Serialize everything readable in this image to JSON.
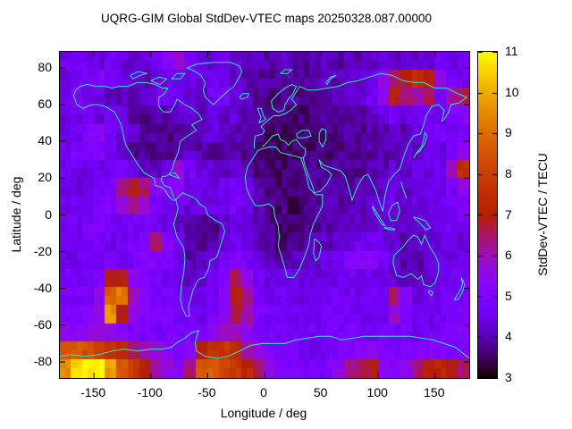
{
  "chart_data": {
    "type": "heatmap",
    "title": "UQRG-GIM Global StdDev-VTEC maps 20250328.087.00000",
    "xlabel": "Longitude / deg",
    "ylabel": "Latitude / deg",
    "colorbar_label": "StdDev-VTEC / TECU",
    "xlim": [
      -180,
      180
    ],
    "ylim": [
      -88.75,
      88.75
    ],
    "xticks": [
      -150,
      -100,
      -50,
      0,
      50,
      100,
      150
    ],
    "yticks": [
      80,
      60,
      40,
      20,
      0,
      -20,
      -40,
      -60,
      -80
    ],
    "colorbar": {
      "min": 3,
      "max": 11,
      "ticks": [
        3,
        4,
        5,
        6,
        7,
        8,
        9,
        10,
        11
      ]
    },
    "palette": "gnuplot pm3d black-violet-red-orange-yellow",
    "units": "TECU",
    "overlay": {
      "coastlines": true,
      "coastline_color": "#35e6c5"
    },
    "grid": {
      "lon_start": -175,
      "lon_step": 10,
      "lat_start": 85,
      "lat_step": -10,
      "values": [
        [
          4.6,
          4.8,
          4.6,
          4.4,
          4.6,
          4.4,
          4.2,
          4.4,
          4.6,
          5.2,
          5.8,
          4.8,
          4.4,
          4.2,
          4.4,
          4.2,
          4.0,
          4.2,
          4.0,
          4.2,
          4.0,
          3.9,
          4.0,
          4.2,
          4.0,
          4.2,
          4.0,
          4.2,
          4.4,
          4.2,
          4.4,
          4.2,
          4.4,
          4.6,
          4.4,
          4.6
        ],
        [
          4.4,
          4.6,
          4.8,
          5.0,
          4.8,
          4.4,
          4.2,
          4.0,
          4.2,
          4.4,
          4.6,
          4.4,
          4.4,
          4.6,
          4.4,
          4.2,
          4.0,
          3.9,
          3.8,
          3.9,
          3.8,
          3.8,
          4.0,
          4.2,
          4.0,
          4.2,
          4.2,
          4.5,
          5.5,
          6.5,
          7.0,
          7.5,
          7.0,
          5.5,
          4.8,
          4.6
        ],
        [
          4.5,
          4.8,
          4.6,
          4.4,
          4.2,
          4.0,
          4.0,
          4.2,
          4.4,
          4.8,
          4.6,
          4.4,
          4.2,
          4.6,
          4.8,
          4.4,
          4.0,
          3.8,
          3.7,
          3.7,
          3.8,
          3.7,
          3.8,
          3.9,
          4.0,
          4.2,
          4.4,
          4.6,
          5.5,
          7.0,
          6.5,
          6.0,
          6.5,
          5.0,
          6.0,
          6.5
        ],
        [
          4.4,
          4.5,
          4.6,
          4.4,
          4.6,
          4.4,
          4.0,
          3.8,
          3.9,
          4.0,
          4.2,
          4.4,
          4.2,
          4.4,
          4.2,
          4.3,
          4.0,
          3.8,
          3.6,
          3.6,
          3.5,
          3.6,
          3.7,
          3.8,
          3.8,
          3.9,
          4.0,
          4.2,
          4.4,
          4.6,
          4.4,
          4.6,
          4.8,
          4.6,
          5.0,
          5.2
        ],
        [
          4.4,
          4.6,
          5.0,
          5.2,
          4.8,
          4.4,
          4.4,
          3.9,
          3.8,
          3.7,
          3.8,
          4.0,
          4.2,
          4.4,
          4.2,
          4.0,
          3.9,
          3.7,
          3.5,
          3.5,
          3.4,
          3.5,
          3.6,
          3.7,
          3.7,
          3.8,
          3.8,
          3.9,
          4.0,
          4.2,
          4.0,
          4.4,
          4.6,
          4.8,
          4.6,
          4.8
        ],
        [
          4.6,
          4.8,
          4.8,
          5.0,
          4.6,
          4.2,
          3.9,
          3.8,
          3.7,
          3.8,
          4.0,
          4.2,
          4.0,
          3.9,
          3.8,
          3.9,
          3.8,
          3.6,
          3.5,
          3.4,
          3.5,
          3.5,
          3.6,
          3.6,
          3.7,
          3.8,
          3.8,
          3.9,
          4.0,
          4.0,
          4.2,
          4.2,
          4.4,
          4.4,
          4.8,
          5.4
        ],
        [
          4.6,
          4.6,
          4.4,
          4.5,
          4.6,
          4.8,
          4.6,
          4.2,
          4.0,
          4.4,
          5.8,
          4.8,
          4.4,
          4.2,
          4.0,
          4.2,
          4.0,
          3.7,
          3.6,
          3.5,
          3.6,
          3.6,
          3.7,
          3.8,
          3.8,
          3.9,
          3.8,
          4.0,
          4.0,
          4.2,
          4.2,
          4.4,
          4.4,
          4.6,
          5.8,
          7.4
        ],
        [
          4.4,
          4.4,
          4.5,
          4.6,
          4.8,
          6.2,
          6.8,
          6.4,
          5.2,
          5.0,
          5.4,
          4.6,
          4.4,
          4.4,
          4.6,
          4.8,
          4.6,
          4.0,
          3.7,
          3.6,
          3.6,
          3.7,
          3.8,
          3.8,
          3.9,
          3.9,
          4.0,
          4.1,
          4.2,
          4.3,
          4.2,
          4.4,
          4.4,
          4.5,
          4.8,
          5.4
        ],
        [
          4.5,
          4.6,
          4.6,
          4.8,
          5.0,
          5.6,
          6.4,
          5.8,
          4.8,
          4.6,
          4.5,
          4.4,
          4.3,
          4.4,
          4.6,
          4.8,
          4.5,
          4.0,
          3.7,
          3.6,
          3.5,
          3.6,
          3.8,
          3.9,
          4.0,
          4.0,
          4.1,
          4.2,
          4.3,
          4.4,
          4.3,
          4.4,
          4.4,
          4.6,
          4.7,
          4.8
        ],
        [
          4.6,
          4.7,
          4.8,
          4.8,
          4.6,
          4.6,
          4.8,
          4.8,
          4.6,
          4.5,
          4.2,
          3.9,
          3.8,
          3.8,
          4.2,
          4.4,
          4.2,
          3.9,
          3.7,
          3.5,
          3.5,
          3.6,
          3.8,
          3.9,
          4.0,
          4.0,
          4.1,
          4.2,
          4.3,
          4.3,
          4.2,
          4.3,
          4.4,
          4.5,
          4.6,
          4.7
        ],
        [
          4.5,
          4.6,
          4.6,
          4.7,
          4.6,
          4.6,
          4.8,
          5.0,
          6.4,
          5.0,
          4.6,
          4.0,
          3.8,
          3.9,
          4.4,
          4.6,
          4.4,
          4.0,
          3.8,
          3.6,
          3.7,
          3.8,
          4.0,
          4.1,
          4.2,
          4.4,
          4.6,
          4.6,
          4.4,
          4.2,
          4.0,
          4.2,
          4.3,
          4.4,
          4.5,
          4.4
        ],
        [
          4.5,
          4.6,
          4.6,
          4.8,
          4.8,
          4.7,
          4.9,
          5.2,
          5.0,
          4.8,
          4.5,
          4.0,
          4.0,
          4.4,
          4.8,
          5.0,
          4.8,
          4.4,
          4.0,
          3.9,
          4.0,
          4.1,
          4.2,
          4.4,
          4.6,
          5.2,
          5.3,
          5.2,
          4.8,
          4.2,
          3.9,
          4.0,
          4.2,
          4.4,
          4.4,
          4.5
        ],
        [
          4.8,
          4.7,
          4.6,
          5.0,
          6.8,
          6.9,
          5.4,
          5.0,
          4.8,
          4.6,
          4.4,
          4.2,
          4.3,
          4.6,
          5.0,
          6.6,
          5.6,
          4.6,
          4.4,
          4.5,
          4.6,
          4.4,
          4.3,
          4.4,
          4.5,
          4.6,
          4.6,
          4.5,
          4.4,
          4.3,
          4.2,
          4.1,
          4.2,
          4.4,
          4.6,
          4.8
        ],
        [
          4.9,
          4.8,
          4.8,
          5.4,
          8.8,
          9.2,
          6.0,
          5.2,
          4.9,
          4.8,
          4.6,
          4.4,
          4.5,
          4.7,
          5.2,
          7.0,
          6.2,
          4.8,
          4.6,
          4.6,
          4.5,
          4.4,
          4.4,
          4.6,
          4.7,
          4.6,
          4.5,
          4.5,
          4.6,
          6.4,
          5.2,
          4.4,
          4.5,
          4.6,
          4.7,
          4.8
        ],
        [
          5.0,
          4.9,
          5.0,
          5.6,
          9.6,
          7.0,
          5.6,
          5.2,
          5.0,
          4.9,
          4.7,
          4.6,
          4.6,
          4.8,
          5.4,
          6.6,
          6.0,
          5.0,
          4.7,
          4.6,
          4.5,
          4.5,
          4.6,
          4.7,
          4.8,
          4.8,
          4.7,
          4.6,
          4.7,
          5.8,
          4.8,
          4.5,
          4.6,
          4.7,
          4.8,
          4.9
        ],
        [
          5.4,
          5.3,
          5.5,
          5.8,
          5.6,
          5.2,
          5.0,
          4.9,
          4.8,
          4.8,
          4.7,
          4.8,
          5.0,
          5.4,
          5.8,
          6.0,
          5.4,
          5.0,
          4.8,
          4.7,
          4.6,
          4.6,
          4.7,
          4.8,
          4.8,
          4.8,
          4.7,
          4.8,
          4.8,
          4.8,
          4.7,
          4.6,
          4.7,
          4.8,
          4.9,
          5.0
        ],
        [
          8.6,
          8.8,
          8.4,
          8.0,
          7.6,
          7.2,
          6.6,
          6.0,
          5.6,
          5.2,
          5.0,
          5.4,
          7.0,
          7.6,
          7.8,
          7.4,
          6.0,
          5.4,
          5.2,
          5.0,
          4.8,
          4.6,
          4.5,
          4.6,
          4.8,
          5.0,
          5.2,
          5.4,
          5.0,
          4.9,
          5.0,
          5.1,
          5.2,
          5.0,
          4.8,
          4.9
        ],
        [
          9.6,
          10.6,
          10.8,
          11.0,
          9.8,
          8.6,
          7.8,
          7.0,
          6.2,
          5.6,
          5.2,
          6.4,
          8.4,
          8.8,
          8.2,
          7.8,
          7.2,
          6.6,
          5.6,
          5.2,
          5.0,
          4.8,
          4.8,
          5.0,
          5.4,
          6.2,
          6.6,
          6.8,
          5.6,
          5.2,
          5.6,
          6.4,
          7.0,
          7.2,
          6.8,
          6.6
        ]
      ]
    }
  }
}
